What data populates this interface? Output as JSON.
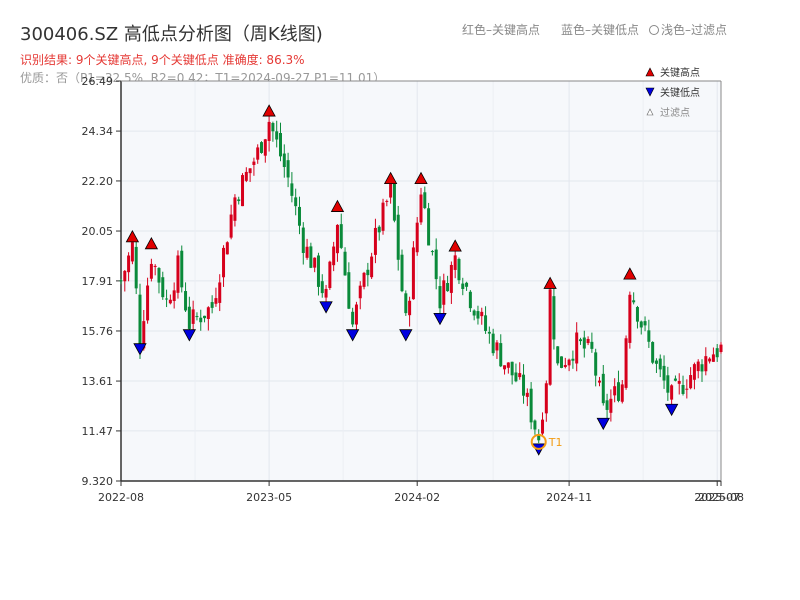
{
  "header": {
    "title": "300406.SZ 高低点分析图（周K线图)",
    "legend_high_text": "红色–关键高点",
    "legend_low_text": "蓝色–关键低点",
    "legend_filtered_text": "浅色–过滤点",
    "result_text": "识别结果: 9个关键高点, 9个关键低点   准确度: 86.3%",
    "quality_text": "优质：否（P1=32.5%, R2=0.42；T1=2024-09-27 P1=11.01）"
  },
  "chart_data": {
    "type": "candlestick",
    "xlabel": "",
    "ylabel": "",
    "ylim": [
      9.32,
      26.49
    ],
    "y_ticks": [
      "26.49",
      "24.34",
      "22.20",
      "20.05",
      "17.91",
      "15.76",
      "13.61",
      "11.47",
      "9.320"
    ],
    "x_ticks": [
      "2022-08",
      "2023-05",
      "2024-02",
      "2024-11",
      "2025-07",
      "2025-08"
    ],
    "x_tick_weeks": [
      0,
      39,
      78,
      118,
      157,
      158
    ],
    "x_range_weeks": [
      0,
      158
    ],
    "grid": true,
    "legend_position": "top-right",
    "legend": [
      {
        "label": "关键高点",
        "kind": "high"
      },
      {
        "label": "关键低点",
        "kind": "low"
      },
      {
        "label": "过滤点",
        "kind": "filtered"
      }
    ],
    "colors": {
      "up": "#d6001c",
      "down": "#0a8a3a",
      "high_marker": "#e00000",
      "low_marker": "#0000e0",
      "t1": "#f39c12"
    },
    "price_path": [
      [
        0,
        17.9
      ],
      [
        3,
        19.4
      ],
      [
        5,
        15.4
      ],
      [
        8,
        19.0
      ],
      [
        12,
        17.0
      ],
      [
        15,
        18.5
      ],
      [
        18,
        16.1
      ],
      [
        24,
        16.8
      ],
      [
        30,
        21.5
      ],
      [
        36,
        23.4
      ],
      [
        39,
        24.8
      ],
      [
        44,
        22.3
      ],
      [
        48,
        19.6
      ],
      [
        54,
        17.2
      ],
      [
        57,
        20.5
      ],
      [
        61,
        16.0
      ],
      [
        66,
        19.2
      ],
      [
        71,
        21.8
      ],
      [
        75,
        16.1
      ],
      [
        79,
        21.9
      ],
      [
        84,
        17.1
      ],
      [
        88,
        18.9
      ],
      [
        92,
        17.2
      ],
      [
        96,
        15.8
      ],
      [
        101,
        14.4
      ],
      [
        106,
        13.2
      ],
      [
        110,
        11.2
      ],
      [
        112,
        13.8
      ],
      [
        113,
        17.4
      ],
      [
        115,
        14.2
      ],
      [
        120,
        15.2
      ],
      [
        124,
        14.8
      ],
      [
        127,
        12.3
      ],
      [
        132,
        13.5
      ],
      [
        134,
        17.7
      ],
      [
        137,
        16.1
      ],
      [
        141,
        14.2
      ],
      [
        145,
        12.9
      ],
      [
        150,
        13.9
      ],
      [
        155,
        14.8
      ],
      [
        158,
        15.0
      ]
    ],
    "key_highs": [
      {
        "week": 3,
        "price": 19.5
      },
      {
        "week": 8,
        "price": 19.2
      },
      {
        "week": 39,
        "price": 24.9
      },
      {
        "week": 57,
        "price": 20.8
      },
      {
        "week": 71,
        "price": 22.0
      },
      {
        "week": 79,
        "price": 22.0
      },
      {
        "week": 88,
        "price": 19.1
      },
      {
        "week": 113,
        "price": 17.5
      },
      {
        "week": 134,
        "price": 17.9
      }
    ],
    "key_lows": [
      {
        "week": 5,
        "price": 15.3
      },
      {
        "week": 18,
        "price": 15.9
      },
      {
        "week": 54,
        "price": 17.1
      },
      {
        "week": 61,
        "price": 15.9
      },
      {
        "week": 75,
        "price": 15.9
      },
      {
        "week": 84,
        "price": 16.6
      },
      {
        "week": 110,
        "price": 11.0
      },
      {
        "week": 127,
        "price": 12.1
      },
      {
        "week": 145,
        "price": 12.7
      }
    ],
    "t1": {
      "label": "T1",
      "week": 110,
      "price": 11.0
    }
  }
}
